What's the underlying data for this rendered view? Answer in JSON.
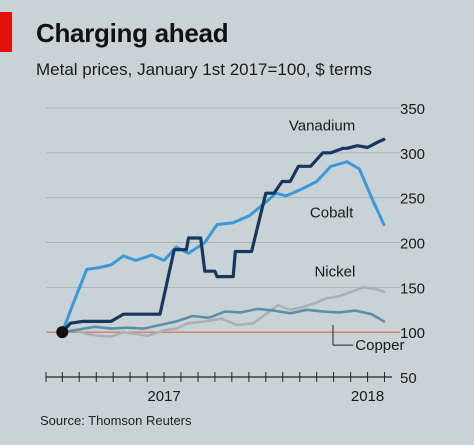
{
  "chart_data": {
    "type": "line",
    "title": "Charging ahead",
    "subtitle": "Metal prices, January 1st 2017=100, $ terms",
    "source": "Source: Thomson Reuters",
    "ylim": [
      50,
      350
    ],
    "yticks": [
      50,
      100,
      150,
      200,
      250,
      300,
      350
    ],
    "y_axis_side": "right",
    "grid": true,
    "xlim": [
      2016.92,
      2018.62
    ],
    "xticks": [
      2016.92,
      2017.0,
      2017.083,
      2017.167,
      2017.25,
      2017.333,
      2017.417,
      2017.5,
      2017.583,
      2017.667,
      2017.75,
      2017.833,
      2017.917,
      2018.0,
      2018.083,
      2018.167,
      2018.25,
      2018.333,
      2018.417,
      2018.5,
      2018.583
    ],
    "xticklabels": [
      {
        "x": 2017.5,
        "label": "2017"
      },
      {
        "x": 2018.5,
        "label": "2018"
      }
    ],
    "baseline": 100,
    "start_marker": {
      "x": 2017.0,
      "y": 100
    },
    "series": [
      {
        "name": "Vanadium",
        "color": "#17375e",
        "label_at": {
          "x": 2018.42,
          "y": 325
        },
        "x": [
          2017.0,
          2017.04,
          2017.1,
          2017.15,
          2017.24,
          2017.3,
          2017.36,
          2017.42,
          2017.48,
          2017.55,
          2017.61,
          2017.62,
          2017.68,
          2017.7,
          2017.75,
          2017.76,
          2017.84,
          2017.85,
          2017.93,
          2018.0,
          2018.04,
          2018.08,
          2018.12,
          2018.16,
          2018.22,
          2018.28,
          2018.32,
          2018.38,
          2018.4,
          2018.45,
          2018.5,
          2018.55,
          2018.58
        ],
        "y": [
          100,
          110,
          112,
          112,
          112,
          120,
          120,
          120,
          120,
          192,
          192,
          205,
          205,
          168,
          168,
          162,
          162,
          190,
          190,
          255,
          255,
          268,
          268,
          285,
          285,
          300,
          300,
          305,
          305,
          308,
          306,
          312,
          315
        ]
      },
      {
        "name": "Cobalt",
        "color": "#3a9ad9",
        "label_at": {
          "x": 2018.41,
          "y": 228
        },
        "x": [
          2017.0,
          2017.05,
          2017.12,
          2017.18,
          2017.24,
          2017.3,
          2017.36,
          2017.44,
          2017.5,
          2017.56,
          2017.62,
          2017.7,
          2017.76,
          2017.84,
          2017.92,
          2018.0,
          2018.05,
          2018.1,
          2018.18,
          2018.25,
          2018.32,
          2018.4,
          2018.46,
          2018.52,
          2018.58
        ],
        "y": [
          100,
          130,
          170,
          172,
          175,
          185,
          180,
          186,
          180,
          195,
          188,
          200,
          220,
          222,
          230,
          245,
          255,
          252,
          260,
          268,
          285,
          290,
          282,
          250,
          220
        ]
      },
      {
        "name": "Nickel",
        "color": "#a8b2b5",
        "label_at": {
          "x": 2018.42,
          "y": 162
        },
        "x": [
          2017.0,
          2017.06,
          2017.12,
          2017.18,
          2017.24,
          2017.3,
          2017.36,
          2017.42,
          2017.5,
          2017.56,
          2017.62,
          2017.7,
          2017.78,
          2017.86,
          2017.94,
          2018.0,
          2018.06,
          2018.12,
          2018.18,
          2018.24,
          2018.3,
          2018.36,
          2018.42,
          2018.48,
          2018.54,
          2018.58
        ],
        "y": [
          100,
          102,
          98,
          96,
          95,
          100,
          98,
          96,
          102,
          104,
          110,
          112,
          115,
          108,
          110,
          120,
          130,
          125,
          128,
          132,
          138,
          140,
          145,
          150,
          148,
          145
        ]
      },
      {
        "name": "Copper",
        "color": "#5c8fa8",
        "label_at": {
          "x": 2018.42,
          "y": 80
        },
        "x": [
          2017.0,
          2017.08,
          2017.16,
          2017.24,
          2017.32,
          2017.4,
          2017.48,
          2017.56,
          2017.64,
          2017.72,
          2017.8,
          2017.88,
          2017.96,
          2018.04,
          2018.12,
          2018.2,
          2018.28,
          2018.36,
          2018.44,
          2018.52,
          2018.58
        ],
        "y": [
          100,
          103,
          106,
          104,
          105,
          104,
          108,
          112,
          118,
          116,
          123,
          122,
          126,
          124,
          121,
          125,
          123,
          122,
          124,
          120,
          112
        ]
      }
    ]
  }
}
